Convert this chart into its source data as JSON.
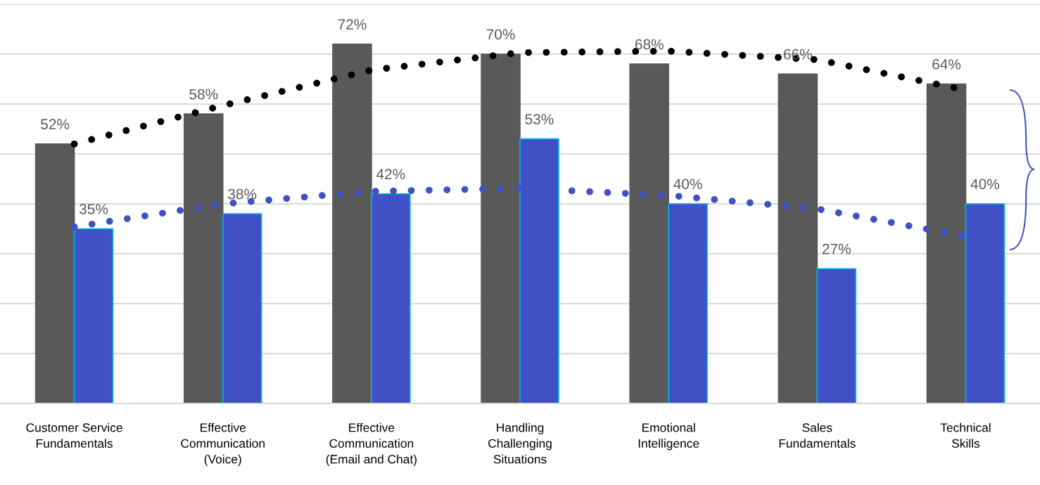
{
  "chart_data": {
    "type": "bar",
    "categories": [
      "Customer Service\nFundamentals",
      "Effective\nCommunication\n(Voice)",
      "Effective\nCommunication\n(Email and Chat)",
      "Handling\nChallenging\nSituations",
      "Emotional\nIntelligence",
      "Sales\nFundamentals",
      "Technical\nSkills"
    ],
    "series": [
      {
        "color": "#595959",
        "values": [
          52,
          58,
          72,
          70,
          68,
          66,
          64
        ],
        "value_labels": [
          "52%",
          "58%",
          "72%",
          "70%",
          "68%",
          "66%",
          "64%"
        ]
      },
      {
        "color": "#3f51c4",
        "values": [
          35,
          38,
          42,
          53,
          40,
          27,
          40
        ],
        "value_labels": [
          "35%",
          "38%",
          "42%",
          "53%",
          "40%",
          "27%",
          "40%"
        ]
      },
      {
        "type": "line",
        "color": "#000000",
        "line_style": "dotted",
        "marker": "none",
        "values": [
          52,
          59.7,
          66.8,
          70.3,
          70.6,
          68.9,
          62.8
        ]
      },
      {
        "type": "line",
        "color": "#3f51c4",
        "line_style": "dotted",
        "marker": "none",
        "values": [
          35.4,
          40,
          42.5,
          43.1,
          41.7,
          39,
          33.5
        ]
      }
    ],
    "ylim": [
      0,
      80
    ],
    "yticks": [
      {
        "value": 0,
        "label": null
      },
      {
        "value": 10,
        "label": null
      },
      {
        "value": 20,
        "label": null
      },
      {
        "value": 30,
        "label": null
      },
      {
        "value": 40,
        "label": null
      },
      {
        "value": 50,
        "label": null
      },
      {
        "value": 60,
        "label": null
      },
      {
        "value": 70,
        "label": null
      },
      {
        "value": 80,
        "label": null
      }
    ],
    "grid": "y",
    "tick_labels": "x"
  }
}
